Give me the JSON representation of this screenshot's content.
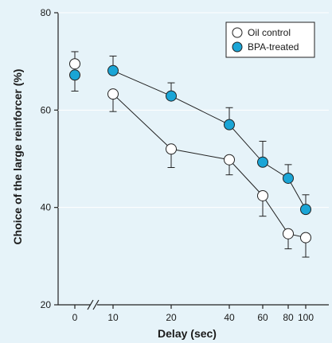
{
  "chart_data": {
    "type": "line",
    "title": "",
    "xlabel": "Delay (sec)",
    "ylabel": "Choice of the large reinforcer (%)",
    "ylim": [
      20,
      80
    ],
    "y_ticks": [
      "20",
      "40",
      "60",
      "80"
    ],
    "x_ticks": [
      "0",
      "10",
      "20",
      "40",
      "60",
      "80",
      "100"
    ],
    "x_axis_break": true,
    "legend_position": "top-right",
    "series": [
      {
        "name": "Oil control",
        "marker": "open-circle",
        "color": "#ffffff",
        "points": [
          {
            "x": "0",
            "y": 69.5,
            "err_up": 2.5,
            "err_down": 0
          },
          {
            "x": "10",
            "y": 63.3,
            "err_up": 0,
            "err_down": 3.6
          },
          {
            "x": "20",
            "y": 52.0,
            "err_up": 0,
            "err_down": 3.8
          },
          {
            "x": "40",
            "y": 49.8,
            "err_up": 0,
            "err_down": 3.1
          },
          {
            "x": "60",
            "y": 42.4,
            "err_up": 0,
            "err_down": 4.2
          },
          {
            "x": "80",
            "y": 34.6,
            "err_up": 0,
            "err_down": 3.1
          },
          {
            "x": "100",
            "y": 33.8,
            "err_up": 0,
            "err_down": 4.0
          }
        ]
      },
      {
        "name": "BPA-treated",
        "marker": "filled-circle",
        "color": "#1aa5d6",
        "points": [
          {
            "x": "0",
            "y": 67.2,
            "err_up": 0,
            "err_down": 3.3
          },
          {
            "x": "10",
            "y": 68.1,
            "err_up": 3.0,
            "err_down": 0
          },
          {
            "x": "20",
            "y": 62.9,
            "err_up": 2.7,
            "err_down": 0
          },
          {
            "x": "40",
            "y": 57.0,
            "err_up": 3.5,
            "err_down": 0
          },
          {
            "x": "60",
            "y": 49.3,
            "err_up": 4.3,
            "err_down": 0
          },
          {
            "x": "80",
            "y": 46.0,
            "err_up": 2.8,
            "err_down": 0
          },
          {
            "x": "100",
            "y": 39.6,
            "err_up": 3.0,
            "err_down": 0
          }
        ]
      }
    ]
  }
}
